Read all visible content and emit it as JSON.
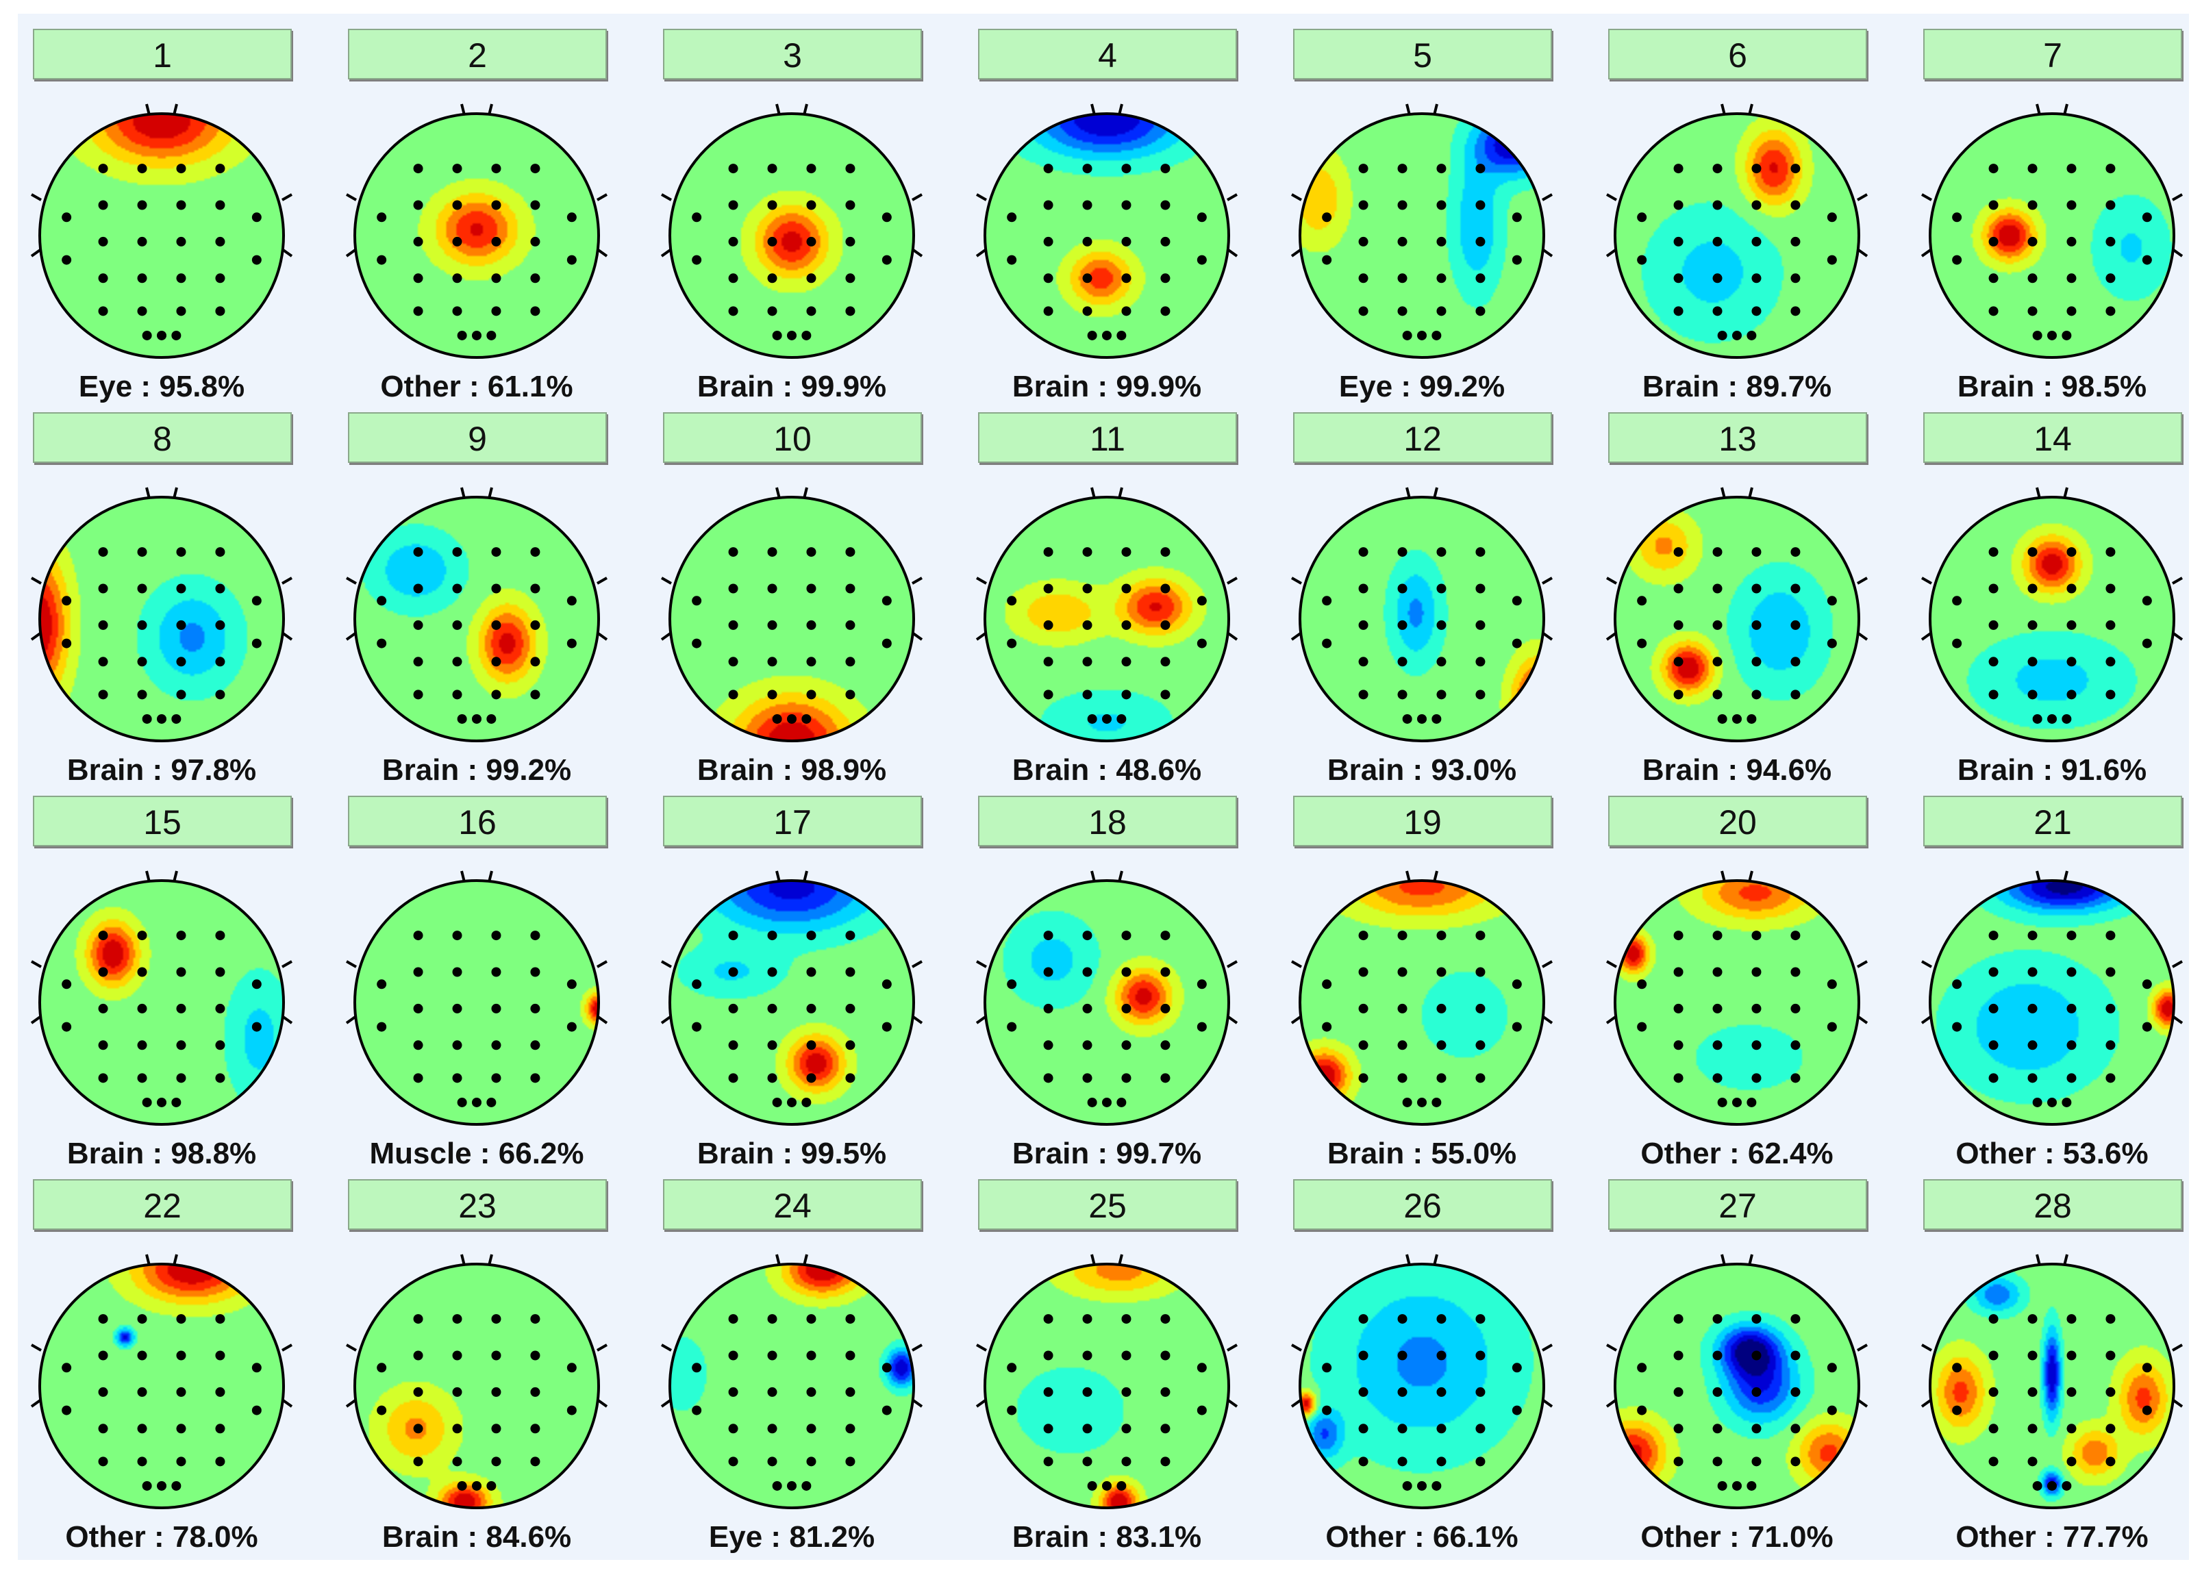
{
  "colors": {
    "panel_bg": "#eef4fc",
    "button_bg": "#bdf7bd",
    "head_outline": "#000000",
    "electrode": "#000000",
    "scale": [
      "#00007f",
      "#0000ff",
      "#007fff",
      "#00ffff",
      "#7fff7f",
      "#ffff00",
      "#ff7f00",
      "#ff0000",
      "#7f0000"
    ]
  },
  "components": [
    {
      "id": "1",
      "label": "Eye",
      "pct": "95.8%",
      "maps": [
        [
          0,
          -0.95,
          1.0,
          0.55,
          0.35,
          0.5
        ]
      ]
    },
    {
      "id": "2",
      "label": "Other",
      "pct": "61.1%",
      "maps": [
        [
          0,
          -0.05,
          0.85,
          0.32,
          0.28,
          0.5
        ]
      ]
    },
    {
      "id": "3",
      "label": "Brain",
      "pct": "99.9%",
      "maps": [
        [
          0,
          0.05,
          0.9,
          0.28,
          0.28,
          0.45
        ]
      ]
    },
    {
      "id": "4",
      "label": "Brain",
      "pct": "99.9%",
      "maps": [
        [
          0,
          -0.95,
          -1.0,
          0.6,
          0.3,
          0.45
        ],
        [
          -0.05,
          0.35,
          0.75,
          0.25,
          0.22,
          0.45
        ]
      ]
    },
    {
      "id": "5",
      "label": "Eye",
      "pct": "99.2%",
      "maps": [
        [
          0.75,
          -0.75,
          -1.0,
          0.3,
          0.25,
          0.4
        ],
        [
          0.45,
          -0.1,
          -0.45,
          0.2,
          0.55,
          0.45
        ],
        [
          -0.85,
          -0.3,
          0.45,
          0.22,
          0.35,
          0.45
        ]
      ]
    },
    {
      "id": "6",
      "label": "Brain",
      "pct": "89.7%",
      "maps": [
        [
          0.3,
          -0.55,
          0.85,
          0.22,
          0.3,
          0.45
        ],
        [
          -0.2,
          0.3,
          -0.35,
          0.5,
          0.5,
          0.45
        ]
      ]
    },
    {
      "id": "7",
      "label": "Brain",
      "pct": "98.5%",
      "maps": [
        [
          -0.35,
          0,
          1.0,
          0.2,
          0.2,
          0.5
        ],
        [
          0.65,
          0.1,
          -0.3,
          0.3,
          0.4,
          0.45
        ]
      ]
    },
    {
      "id": "8",
      "label": "Brain",
      "pct": "97.8%",
      "maps": [
        [
          -1.0,
          0.05,
          1.0,
          0.22,
          0.55,
          0.45
        ],
        [
          0.25,
          0.15,
          -0.5,
          0.35,
          0.4,
          0.45
        ]
      ]
    },
    {
      "id": "9",
      "label": "Brain",
      "pct": "99.2%",
      "maps": [
        [
          0.25,
          0.2,
          0.9,
          0.22,
          0.3,
          0.45
        ],
        [
          -0.5,
          -0.4,
          -0.45,
          0.35,
          0.3,
          0.45
        ]
      ]
    },
    {
      "id": "10",
      "label": "Brain",
      "pct": "98.9%",
      "maps": [
        [
          0,
          1.0,
          1.0,
          0.45,
          0.35,
          0.6
        ]
      ]
    },
    {
      "id": "11",
      "label": "Brain",
      "pct": "48.6%",
      "maps": [
        [
          0.4,
          -0.1,
          0.85,
          0.28,
          0.22,
          0.45
        ],
        [
          -0.4,
          -0.05,
          0.45,
          0.35,
          0.22,
          0.45
        ],
        [
          0,
          0.85,
          -0.3,
          0.5,
          0.25,
          0.45
        ]
      ]
    },
    {
      "id": "12",
      "label": "Brain",
      "pct": "93.0%",
      "maps": [
        [
          0.95,
          0.7,
          1.0,
          0.2,
          0.35,
          0.45
        ],
        [
          -0.05,
          -0.05,
          -0.5,
          0.2,
          0.4,
          0.45
        ]
      ]
    },
    {
      "id": "13",
      "label": "Brain",
      "pct": "94.6%",
      "maps": [
        [
          -0.4,
          0.4,
          1.0,
          0.2,
          0.2,
          0.5
        ],
        [
          -0.6,
          -0.6,
          0.5,
          0.25,
          0.25,
          0.45
        ],
        [
          0.35,
          0.1,
          -0.45,
          0.35,
          0.45,
          0.45
        ]
      ]
    },
    {
      "id": "14",
      "label": "Brain",
      "pct": "91.6%",
      "maps": [
        [
          0,
          -0.45,
          0.95,
          0.22,
          0.22,
          0.45
        ],
        [
          0,
          0.5,
          -0.35,
          0.6,
          0.35,
          0.45
        ]
      ]
    },
    {
      "id": "15",
      "label": "Brain",
      "pct": "98.8%",
      "maps": [
        [
          -0.4,
          -0.4,
          1.0,
          0.2,
          0.25,
          0.5
        ],
        [
          0.8,
          0.3,
          -0.35,
          0.25,
          0.5,
          0.45
        ]
      ]
    },
    {
      "id": "16",
      "label": "Muscle",
      "pct": "66.2%",
      "maps": [
        [
          1.0,
          0.05,
          1.0,
          0.1,
          0.12,
          0.5
        ]
      ]
    },
    {
      "id": "17",
      "label": "Brain",
      "pct": "99.5%",
      "maps": [
        [
          0,
          -0.95,
          -0.9,
          0.65,
          0.35,
          0.45
        ],
        [
          0.2,
          0.5,
          0.95,
          0.22,
          0.22,
          0.45
        ],
        [
          -0.5,
          -0.25,
          -0.3,
          0.4,
          0.2,
          0.45
        ]
      ]
    },
    {
      "id": "18",
      "label": "Brain",
      "pct": "99.7%",
      "maps": [
        [
          0.3,
          -0.05,
          0.9,
          0.22,
          0.22,
          0.45
        ],
        [
          -0.45,
          -0.35,
          -0.35,
          0.35,
          0.35,
          0.45
        ]
      ]
    },
    {
      "id": "19",
      "label": "Brain",
      "pct": "55.0%",
      "maps": [
        [
          0,
          -0.95,
          0.7,
          0.6,
          0.25,
          0.45
        ],
        [
          -0.8,
          0.6,
          1.0,
          0.2,
          0.2,
          0.5
        ],
        [
          0.35,
          0.1,
          -0.25,
          0.35,
          0.35,
          0.45
        ]
      ]
    },
    {
      "id": "20",
      "label": "Other",
      "pct": "62.4%",
      "maps": [
        [
          -0.85,
          -0.4,
          1.0,
          0.12,
          0.15,
          0.5
        ],
        [
          0.15,
          -0.9,
          0.7,
          0.45,
          0.22,
          0.45
        ],
        [
          0.1,
          0.45,
          -0.2,
          0.5,
          0.3,
          0.45
        ]
      ]
    },
    {
      "id": "21",
      "label": "Other",
      "pct": "53.6%",
      "maps": [
        [
          0.1,
          -0.95,
          -1.1,
          0.5,
          0.2,
          0.45
        ],
        [
          0.95,
          0.05,
          1.0,
          0.12,
          0.15,
          0.5
        ],
        [
          -0.2,
          0.2,
          -0.45,
          0.6,
          0.5,
          0.45
        ]
      ]
    },
    {
      "id": "22",
      "label": "Other",
      "pct": "78.0%",
      "maps": [
        [
          0.25,
          -0.95,
          1.0,
          0.45,
          0.25,
          0.45
        ],
        [
          -0.3,
          -0.4,
          -0.9,
          0.07,
          0.07,
          0.5
        ]
      ]
    },
    {
      "id": "23",
      "label": "Brain",
      "pct": "84.6%",
      "maps": [
        [
          -0.1,
          0.95,
          1.0,
          0.2,
          0.15,
          0.5
        ],
        [
          -0.5,
          0.35,
          0.5,
          0.3,
          0.3,
          0.45
        ]
      ]
    },
    {
      "id": "24",
      "label": "Eye",
      "pct": "81.2%",
      "maps": [
        [
          0.25,
          -0.95,
          1.0,
          0.3,
          0.2,
          0.5
        ],
        [
          0.9,
          -0.15,
          -1.0,
          0.12,
          0.15,
          0.5
        ],
        [
          -0.9,
          -0.1,
          -0.25,
          0.2,
          0.3,
          0.45
        ]
      ]
    },
    {
      "id": "25",
      "label": "Brain",
      "pct": "83.1%",
      "maps": [
        [
          0.1,
          0.95,
          1.0,
          0.15,
          0.15,
          0.5
        ],
        [
          0.1,
          -0.95,
          0.55,
          0.45,
          0.2,
          0.45
        ],
        [
          -0.3,
          0.2,
          -0.2,
          0.5,
          0.4,
          0.45
        ]
      ]
    },
    {
      "id": "26",
      "label": "Other",
      "pct": "66.1%",
      "maps": [
        [
          -0.95,
          0.15,
          1.0,
          0.08,
          0.1,
          0.5
        ],
        [
          0,
          -0.2,
          -0.5,
          0.7,
          0.7,
          0.45
        ],
        [
          -0.8,
          0.4,
          -0.6,
          0.15,
          0.2,
          0.45
        ]
      ]
    },
    {
      "id": "27",
      "label": "Other",
      "pct": "71.0%",
      "maps": [
        [
          0.1,
          -0.3,
          -1.0,
          0.25,
          0.2,
          0.45
        ],
        [
          0.2,
          0,
          -0.8,
          0.3,
          0.3,
          0.45
        ],
        [
          -0.85,
          0.55,
          0.9,
          0.25,
          0.25,
          0.5
        ],
        [
          0.75,
          0.55,
          0.7,
          0.25,
          0.25,
          0.5
        ]
      ]
    },
    {
      "id": "28",
      "label": "Other",
      "pct": "77.7%",
      "maps": [
        [
          0,
          -0.1,
          -1.0,
          0.07,
          0.35,
          0.45
        ],
        [
          0,
          0.8,
          -0.9,
          0.08,
          0.1,
          0.5
        ],
        [
          -0.75,
          0.05,
          0.7,
          0.2,
          0.3,
          0.5
        ],
        [
          0.75,
          0.1,
          0.7,
          0.2,
          0.3,
          0.5
        ],
        [
          -0.45,
          -0.75,
          -0.6,
          0.2,
          0.15,
          0.45
        ],
        [
          0.35,
          0.55,
          0.6,
          0.2,
          0.2,
          0.5
        ]
      ]
    }
  ]
}
